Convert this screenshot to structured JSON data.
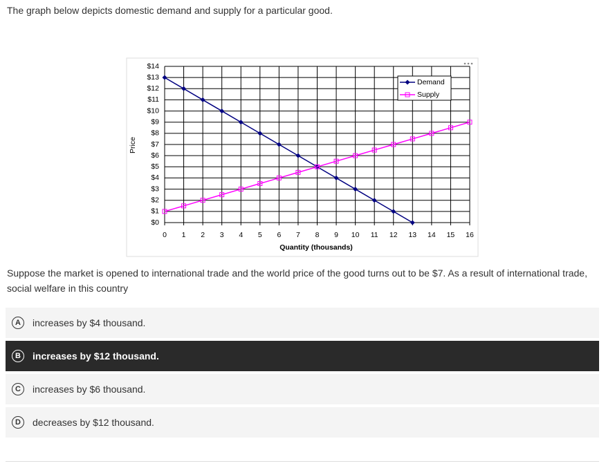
{
  "intro": "The graph below depicts domestic demand and supply for a particular good.",
  "chart_data": {
    "type": "line",
    "x_label": "Quantity (thousands)",
    "y_label": "Price",
    "x": [
      0,
      1,
      2,
      3,
      4,
      5,
      6,
      7,
      8,
      9,
      10,
      11,
      12,
      13,
      14,
      15,
      16
    ],
    "series": [
      {
        "name": "Demand",
        "color": "#000080",
        "marker": "diamond",
        "values": [
          13,
          12,
          11,
          10,
          9,
          8,
          7,
          6,
          5,
          4,
          3,
          2,
          1,
          0,
          null,
          null,
          null
        ]
      },
      {
        "name": "Supply",
        "color": "#ff00ff",
        "marker": "square",
        "values": [
          1,
          1.5,
          2,
          2.5,
          3,
          3.5,
          4,
          4.5,
          5,
          5.5,
          6,
          6.5,
          7,
          7.5,
          8,
          8.5,
          9
        ]
      }
    ],
    "xlim": [
      0,
      16
    ],
    "ylim": [
      0,
      14
    ],
    "xticks": [
      0,
      1,
      2,
      3,
      4,
      5,
      6,
      7,
      8,
      9,
      10,
      11,
      12,
      13,
      14,
      15,
      16
    ],
    "yticks": [
      {
        "value": 0,
        "label": "$0"
      },
      {
        "value": 1,
        "label": "$1"
      },
      {
        "value": 2,
        "label": "$2"
      },
      {
        "value": 3,
        "label": "$3"
      },
      {
        "value": 4,
        "label": "$4"
      },
      {
        "value": 5,
        "label": "$5"
      },
      {
        "value": 6,
        "label": "$6"
      },
      {
        "value": 7,
        "label": "$7"
      },
      {
        "value": 8,
        "label": "$8"
      },
      {
        "value": 9,
        "label": "$9"
      },
      {
        "value": 10,
        "label": "$10"
      },
      {
        "value": 11,
        "label": "$11"
      },
      {
        "value": 12,
        "label": "$12"
      },
      {
        "value": 13,
        "label": "$13"
      },
      {
        "value": 14,
        "label": "$14"
      }
    ],
    "grid": true,
    "legend": "top-right"
  },
  "question": "Suppose the market is opened to international trade and the world price of the good turns out to be $7. As a result of international trade, social welfare in this country",
  "options": [
    {
      "letter": "A",
      "text": "increases by $4 thousand."
    },
    {
      "letter": "B",
      "text": "increases by $12 thousand.",
      "selected": true
    },
    {
      "letter": "C",
      "text": "increases by $6 thousand."
    },
    {
      "letter": "D",
      "text": "decreases by $12 thousand."
    }
  ]
}
